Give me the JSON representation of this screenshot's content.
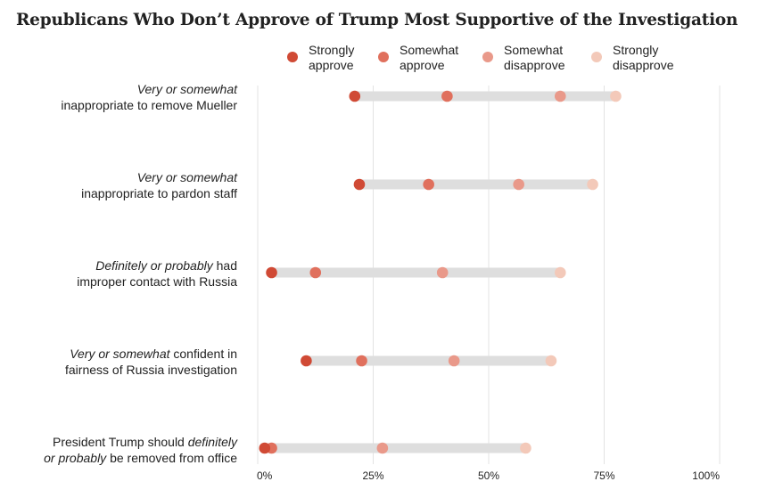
{
  "title": "Republicans Who Don’t Approve of Trump Most Supportive of the Investigation",
  "legend": [
    {
      "label_line1": "Strongly",
      "label_line2": "approve",
      "color": "#d04a35"
    },
    {
      "label_line1": "Somewhat",
      "label_line2": "approve",
      "color": "#e0705d"
    },
    {
      "label_line1": "Somewhat",
      "label_line2": "disapprove",
      "color": "#e9998a"
    },
    {
      "label_line1": "Strongly",
      "label_line2": "disapprove",
      "color": "#f3c9b9"
    }
  ],
  "rows": [
    {
      "label_em": "Very or somewhat",
      "label_rest": "",
      "label_line2": "inappropriate to remove Mueller"
    },
    {
      "label_em": "Very or somewhat",
      "label_rest": "",
      "label_line2": "inappropriate to pardon staff"
    },
    {
      "label_em": "Definitely or probably",
      "label_rest": " had",
      "label_line2": "improper contact with Russia"
    },
    {
      "label_em": "Very or somewhat",
      "label_rest": " confident in",
      "label_line2": "fairness of Russia investigation"
    },
    {
      "label_pre": "President Trump should ",
      "label_em": "definitely",
      "label_line2_em": "or probably",
      "label_line2": " be removed from office"
    }
  ],
  "chart_data": {
    "type": "scatter",
    "title": "Republicans Who Don’t Approve of Trump Most Supportive of the Investigation",
    "x_ticks": [
      "0%",
      "25%",
      "50%",
      "75%",
      "100%"
    ],
    "xlim": [
      0,
      100
    ],
    "grid": true,
    "legend_position": "top-right",
    "categories": [
      "Very or somewhat inappropriate to remove Mueller",
      "Very or somewhat inappropriate to pardon staff",
      "Definitely or probably had improper contact with Russia",
      "Very or somewhat confident in fairness of Russia investigation",
      "President Trump should definitely or probably be removed from office"
    ],
    "series": [
      {
        "name": "Strongly approve",
        "color": "#d04a35",
        "values": [
          21,
          22,
          3,
          10.5,
          1.5
        ]
      },
      {
        "name": "Somewhat approve",
        "color": "#e0705d",
        "values": [
          41,
          37,
          12.5,
          22.5,
          3
        ]
      },
      {
        "name": "Somewhat disapprove",
        "color": "#e9998a",
        "values": [
          65.5,
          56.5,
          40,
          42.5,
          27
        ]
      },
      {
        "name": "Strongly disapprove",
        "color": "#f3c9b9",
        "values": [
          77.5,
          72.5,
          65.5,
          63.5,
          58
        ]
      }
    ]
  }
}
